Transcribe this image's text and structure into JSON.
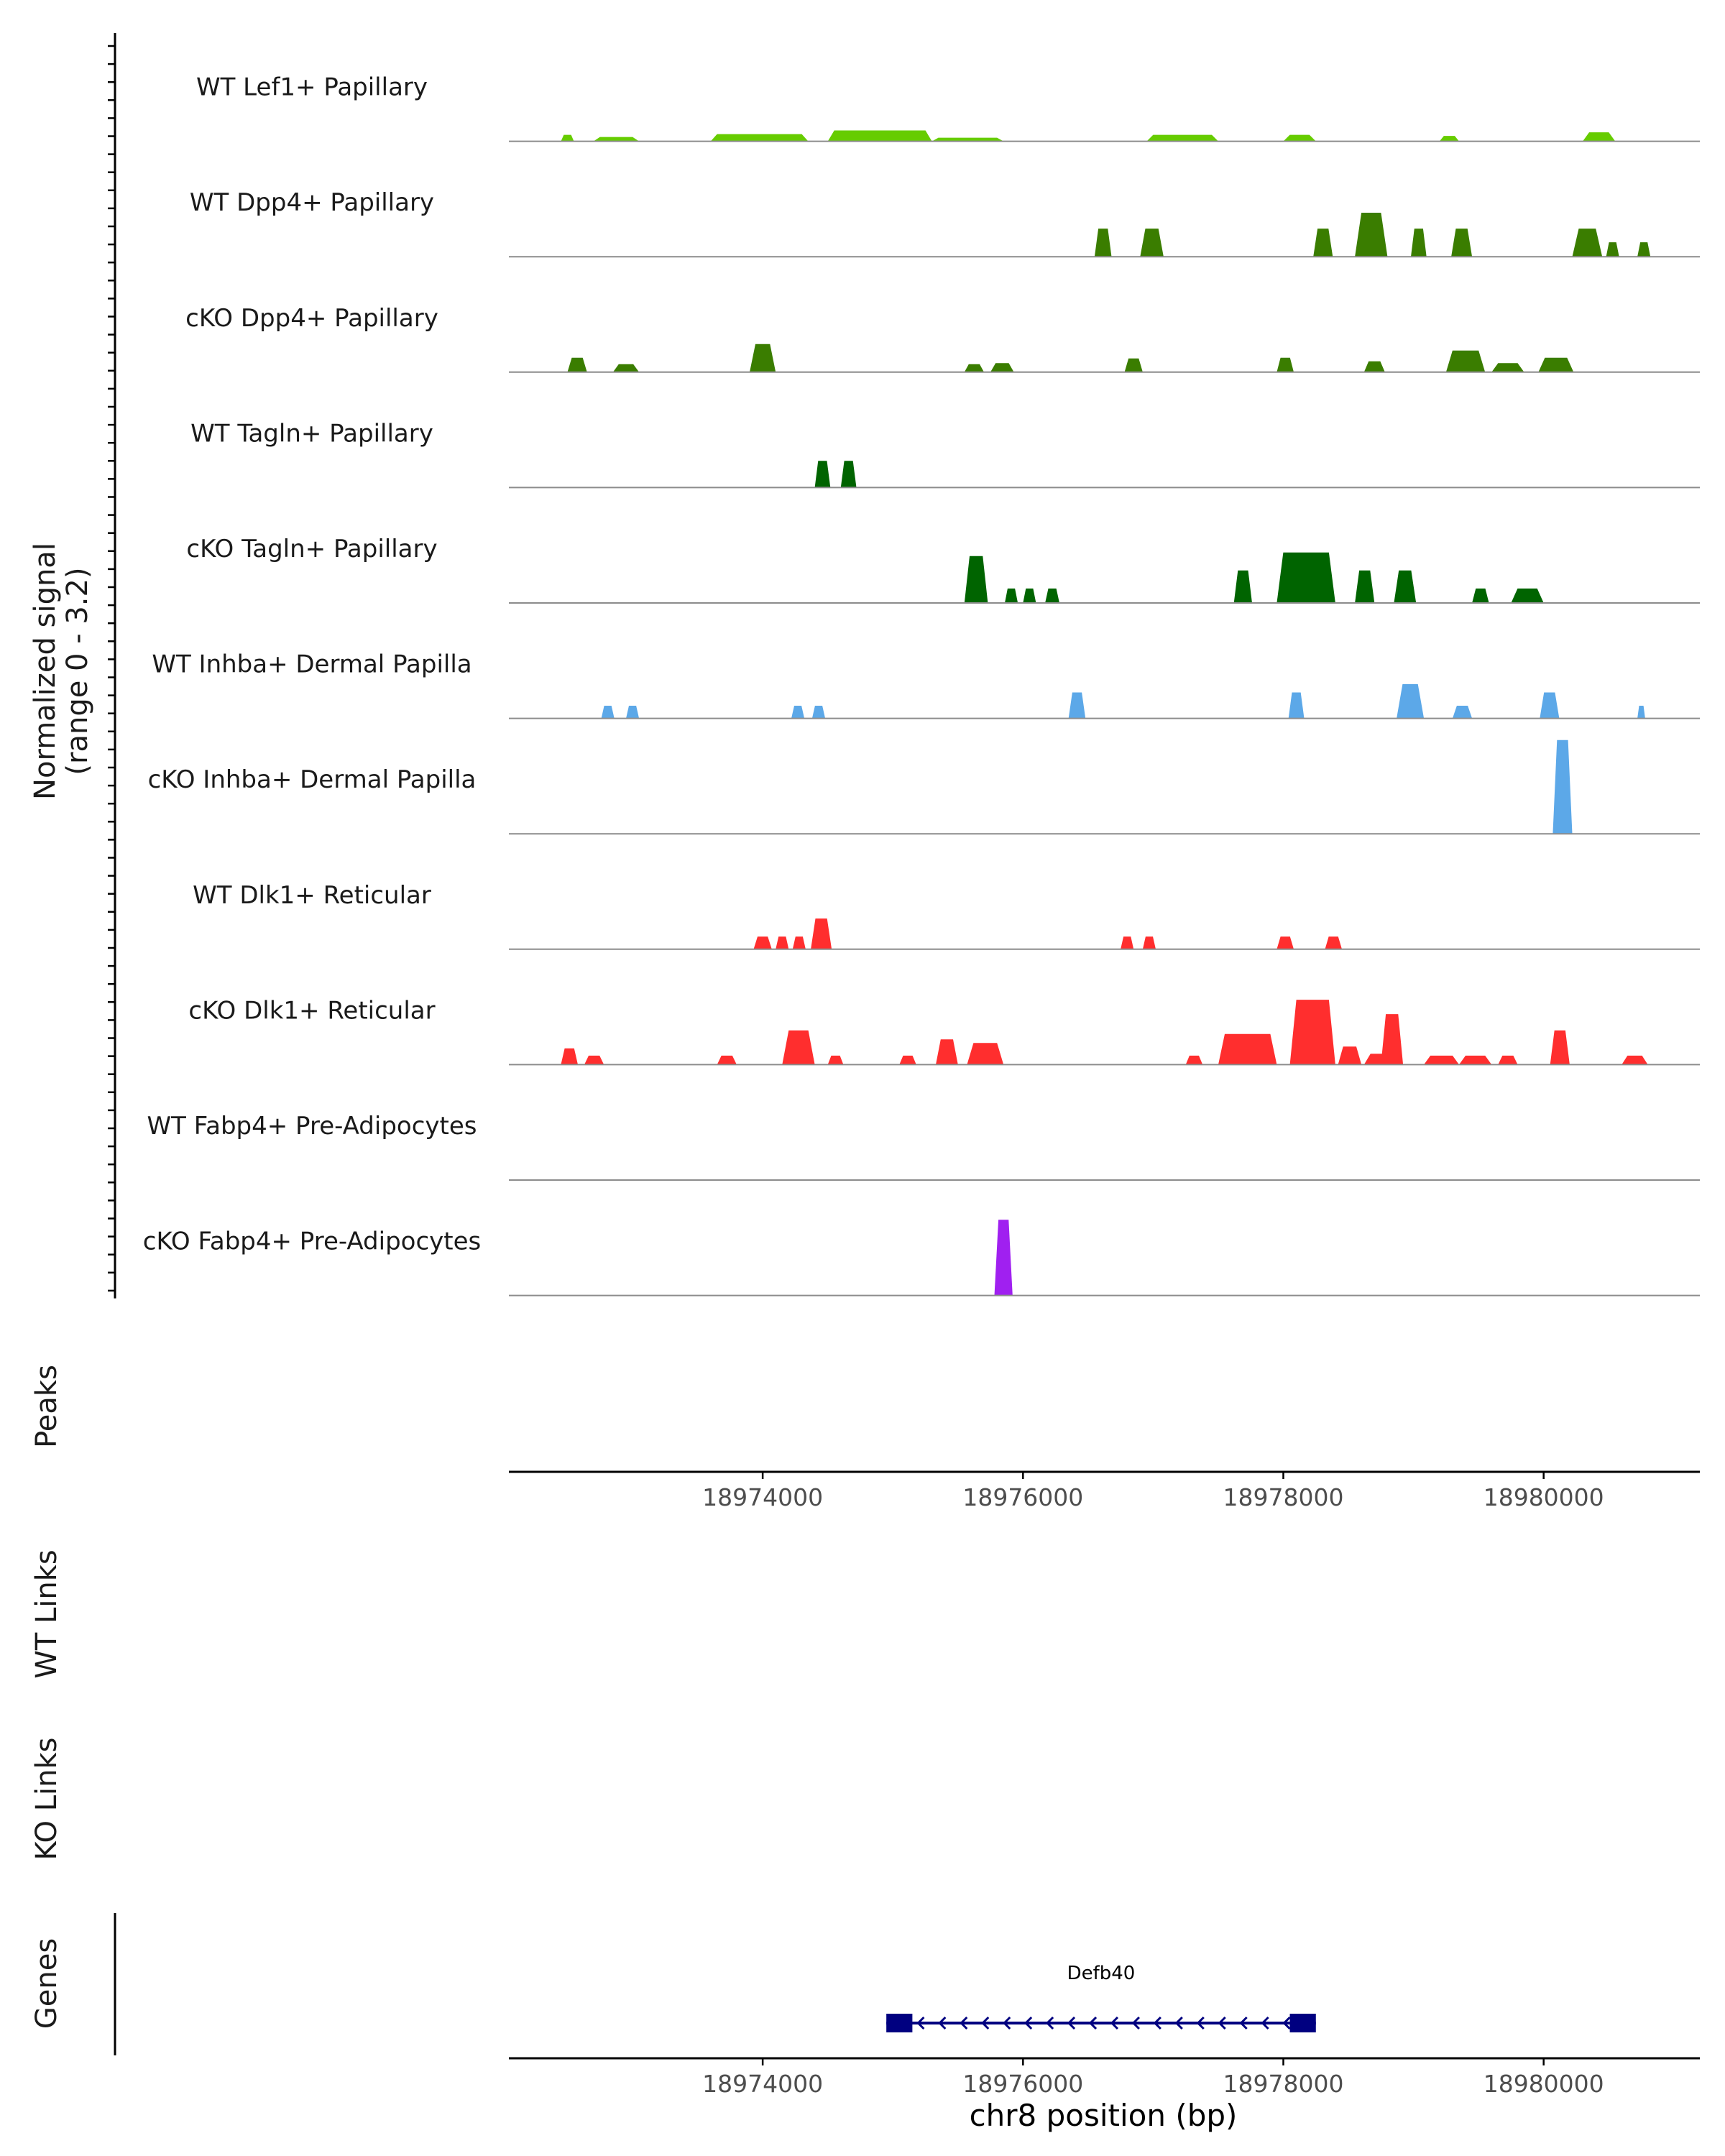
{
  "chart_data": {
    "type": "area",
    "title": "",
    "chromosome": "chr8",
    "xlabel": "chr8 position (bp)",
    "xlim": [
      18972050,
      18981200
    ],
    "xticks": [
      18974000,
      18976000,
      18978000,
      18980000
    ],
    "xtick_labels": [
      "18974000",
      "18976000",
      "18978000",
      "18980000"
    ],
    "signal_ylabel": [
      "Normalized signal",
      "(range 0 - 3.2)"
    ],
    "ylim": [
      0,
      3.2
    ],
    "series": [
      {
        "name": "WT Lef1+ Papillary",
        "color": "#66cc00",
        "peaks": [
          [
            18972450,
            18972550,
            0.18
          ],
          [
            18972700,
            18973050,
            0.12
          ],
          [
            18973600,
            18974350,
            0.2
          ],
          [
            18974500,
            18975300,
            0.3
          ],
          [
            18975300,
            18975850,
            0.1
          ],
          [
            18976950,
            18977500,
            0.18
          ],
          [
            18978000,
            18978250,
            0.18
          ],
          [
            18979200,
            18979350,
            0.15
          ],
          [
            18980300,
            18980550,
            0.25
          ]
        ]
      },
      {
        "name": "WT Dpp4+ Papillary",
        "color": "#3a7d00",
        "peaks": [
          [
            18976550,
            18976680,
            0.78
          ],
          [
            18976900,
            18977080,
            0.78
          ],
          [
            18978230,
            18978380,
            0.78
          ],
          [
            18978550,
            18978800,
            1.22
          ],
          [
            18978980,
            18979100,
            0.78
          ],
          [
            18979290,
            18979450,
            0.78
          ],
          [
            18980220,
            18980450,
            0.78
          ],
          [
            18980480,
            18980580,
            0.4
          ],
          [
            18980720,
            18980820,
            0.4
          ]
        ]
      },
      {
        "name": "cKO Dpp4+ Papillary",
        "color": "#3a7d00",
        "peaks": [
          [
            18972500,
            18972650,
            0.4
          ],
          [
            18972850,
            18973050,
            0.22
          ],
          [
            18973900,
            18974100,
            0.78
          ],
          [
            18975550,
            18975700,
            0.22
          ],
          [
            18975750,
            18975930,
            0.25
          ],
          [
            18976780,
            18976920,
            0.38
          ],
          [
            18977950,
            18978080,
            0.4
          ],
          [
            18978620,
            18978780,
            0.3
          ],
          [
            18979250,
            18979550,
            0.6
          ],
          [
            18979600,
            18979850,
            0.25
          ],
          [
            18979960,
            18980230,
            0.4
          ]
        ]
      },
      {
        "name": "WT Tagln+ Papillary",
        "color": "#006400",
        "peaks": [
          [
            18974400,
            18974520,
            0.74
          ],
          [
            18974600,
            18974720,
            0.74
          ]
        ]
      },
      {
        "name": "cKO Tagln+ Papillary",
        "color": "#006400",
        "peaks": [
          [
            18975550,
            18975730,
            1.3
          ],
          [
            18975860,
            18975960,
            0.4
          ],
          [
            18976000,
            18976100,
            0.4
          ],
          [
            18976170,
            18976280,
            0.4
          ],
          [
            18977620,
            18977760,
            0.9
          ],
          [
            18977950,
            18978400,
            1.4
          ],
          [
            18978550,
            18978700,
            0.9
          ],
          [
            18978850,
            18979020,
            0.9
          ],
          [
            18979450,
            18979580,
            0.4
          ],
          [
            18979750,
            18980000,
            0.4
          ]
        ]
      },
      {
        "name": "WT Inhba+ Dermal Papilla",
        "color": "#5ca8e8",
        "peaks": [
          [
            18972760,
            18972860,
            0.35
          ],
          [
            18972950,
            18973050,
            0.35
          ],
          [
            18974220,
            18974320,
            0.35
          ],
          [
            18974380,
            18974480,
            0.35
          ],
          [
            18976350,
            18976480,
            0.72
          ],
          [
            18978040,
            18978160,
            0.72
          ],
          [
            18978870,
            18979080,
            0.95
          ],
          [
            18979300,
            18979450,
            0.35
          ],
          [
            18979970,
            18980120,
            0.72
          ],
          [
            18980720,
            18980780,
            0.35
          ]
        ]
      },
      {
        "name": "cKO Inhba+ Dermal Papilla",
        "color": "#5ca8e8",
        "peaks": [
          [
            18980070,
            18980220,
            2.6
          ]
        ]
      },
      {
        "name": "WT Dlk1+ Reticular",
        "color": "#ff2e2e",
        "peaks": [
          [
            18973930,
            18974070,
            0.35
          ],
          [
            18974100,
            18974200,
            0.35
          ],
          [
            18974230,
            18974330,
            0.35
          ],
          [
            18974370,
            18974530,
            0.85
          ],
          [
            18976750,
            18976850,
            0.35
          ],
          [
            18976920,
            18977020,
            0.35
          ],
          [
            18977950,
            18978080,
            0.35
          ],
          [
            18978320,
            18978450,
            0.35
          ]
        ]
      },
      {
        "name": "cKO Dlk1+ Reticular",
        "color": "#ff2e2e",
        "peaks": [
          [
            18972450,
            18972580,
            0.45
          ],
          [
            18972630,
            18972780,
            0.25
          ],
          [
            18973650,
            18973800,
            0.25
          ],
          [
            18974150,
            18974400,
            0.95
          ],
          [
            18974500,
            18974620,
            0.25
          ],
          [
            18975050,
            18975180,
            0.25
          ],
          [
            18975330,
            18975500,
            0.7
          ],
          [
            18975570,
            18975850,
            0.6
          ],
          [
            18977250,
            18977380,
            0.25
          ],
          [
            18977500,
            18977950,
            0.85
          ],
          [
            18978050,
            18978400,
            1.8
          ],
          [
            18978420,
            18978600,
            0.5
          ],
          [
            18978620,
            18978850,
            0.3
          ],
          [
            18978750,
            18978920,
            1.4
          ],
          [
            18979080,
            18979350,
            0.25
          ],
          [
            18979350,
            18979600,
            0.25
          ],
          [
            18979650,
            18979800,
            0.25
          ],
          [
            18980050,
            18980200,
            0.95
          ],
          [
            18980600,
            18980800,
            0.25
          ]
        ]
      },
      {
        "name": "WT Fabp4+ Pre-Adipocytes",
        "color": "#a020f0",
        "peaks": []
      },
      {
        "name": "cKO Fabp4+ Pre-Adipocytes",
        "color": "#a020f0",
        "peaks": [
          [
            18975780,
            18975920,
            2.1
          ]
        ]
      }
    ],
    "panels": {
      "peaks": {
        "label": "Peaks",
        "items": []
      },
      "wt_links": {
        "label": "WT Links",
        "items": []
      },
      "ko_links": {
        "label": "KO Links",
        "items": []
      },
      "genes": {
        "label": "Genes",
        "items": [
          {
            "name": "Defb40",
            "start": 18974950,
            "end": 18978250,
            "strand": "-",
            "exons": [
              [
                18974950,
                18975150
              ],
              [
                18978050,
                18978250
              ]
            ]
          }
        ]
      }
    }
  }
}
